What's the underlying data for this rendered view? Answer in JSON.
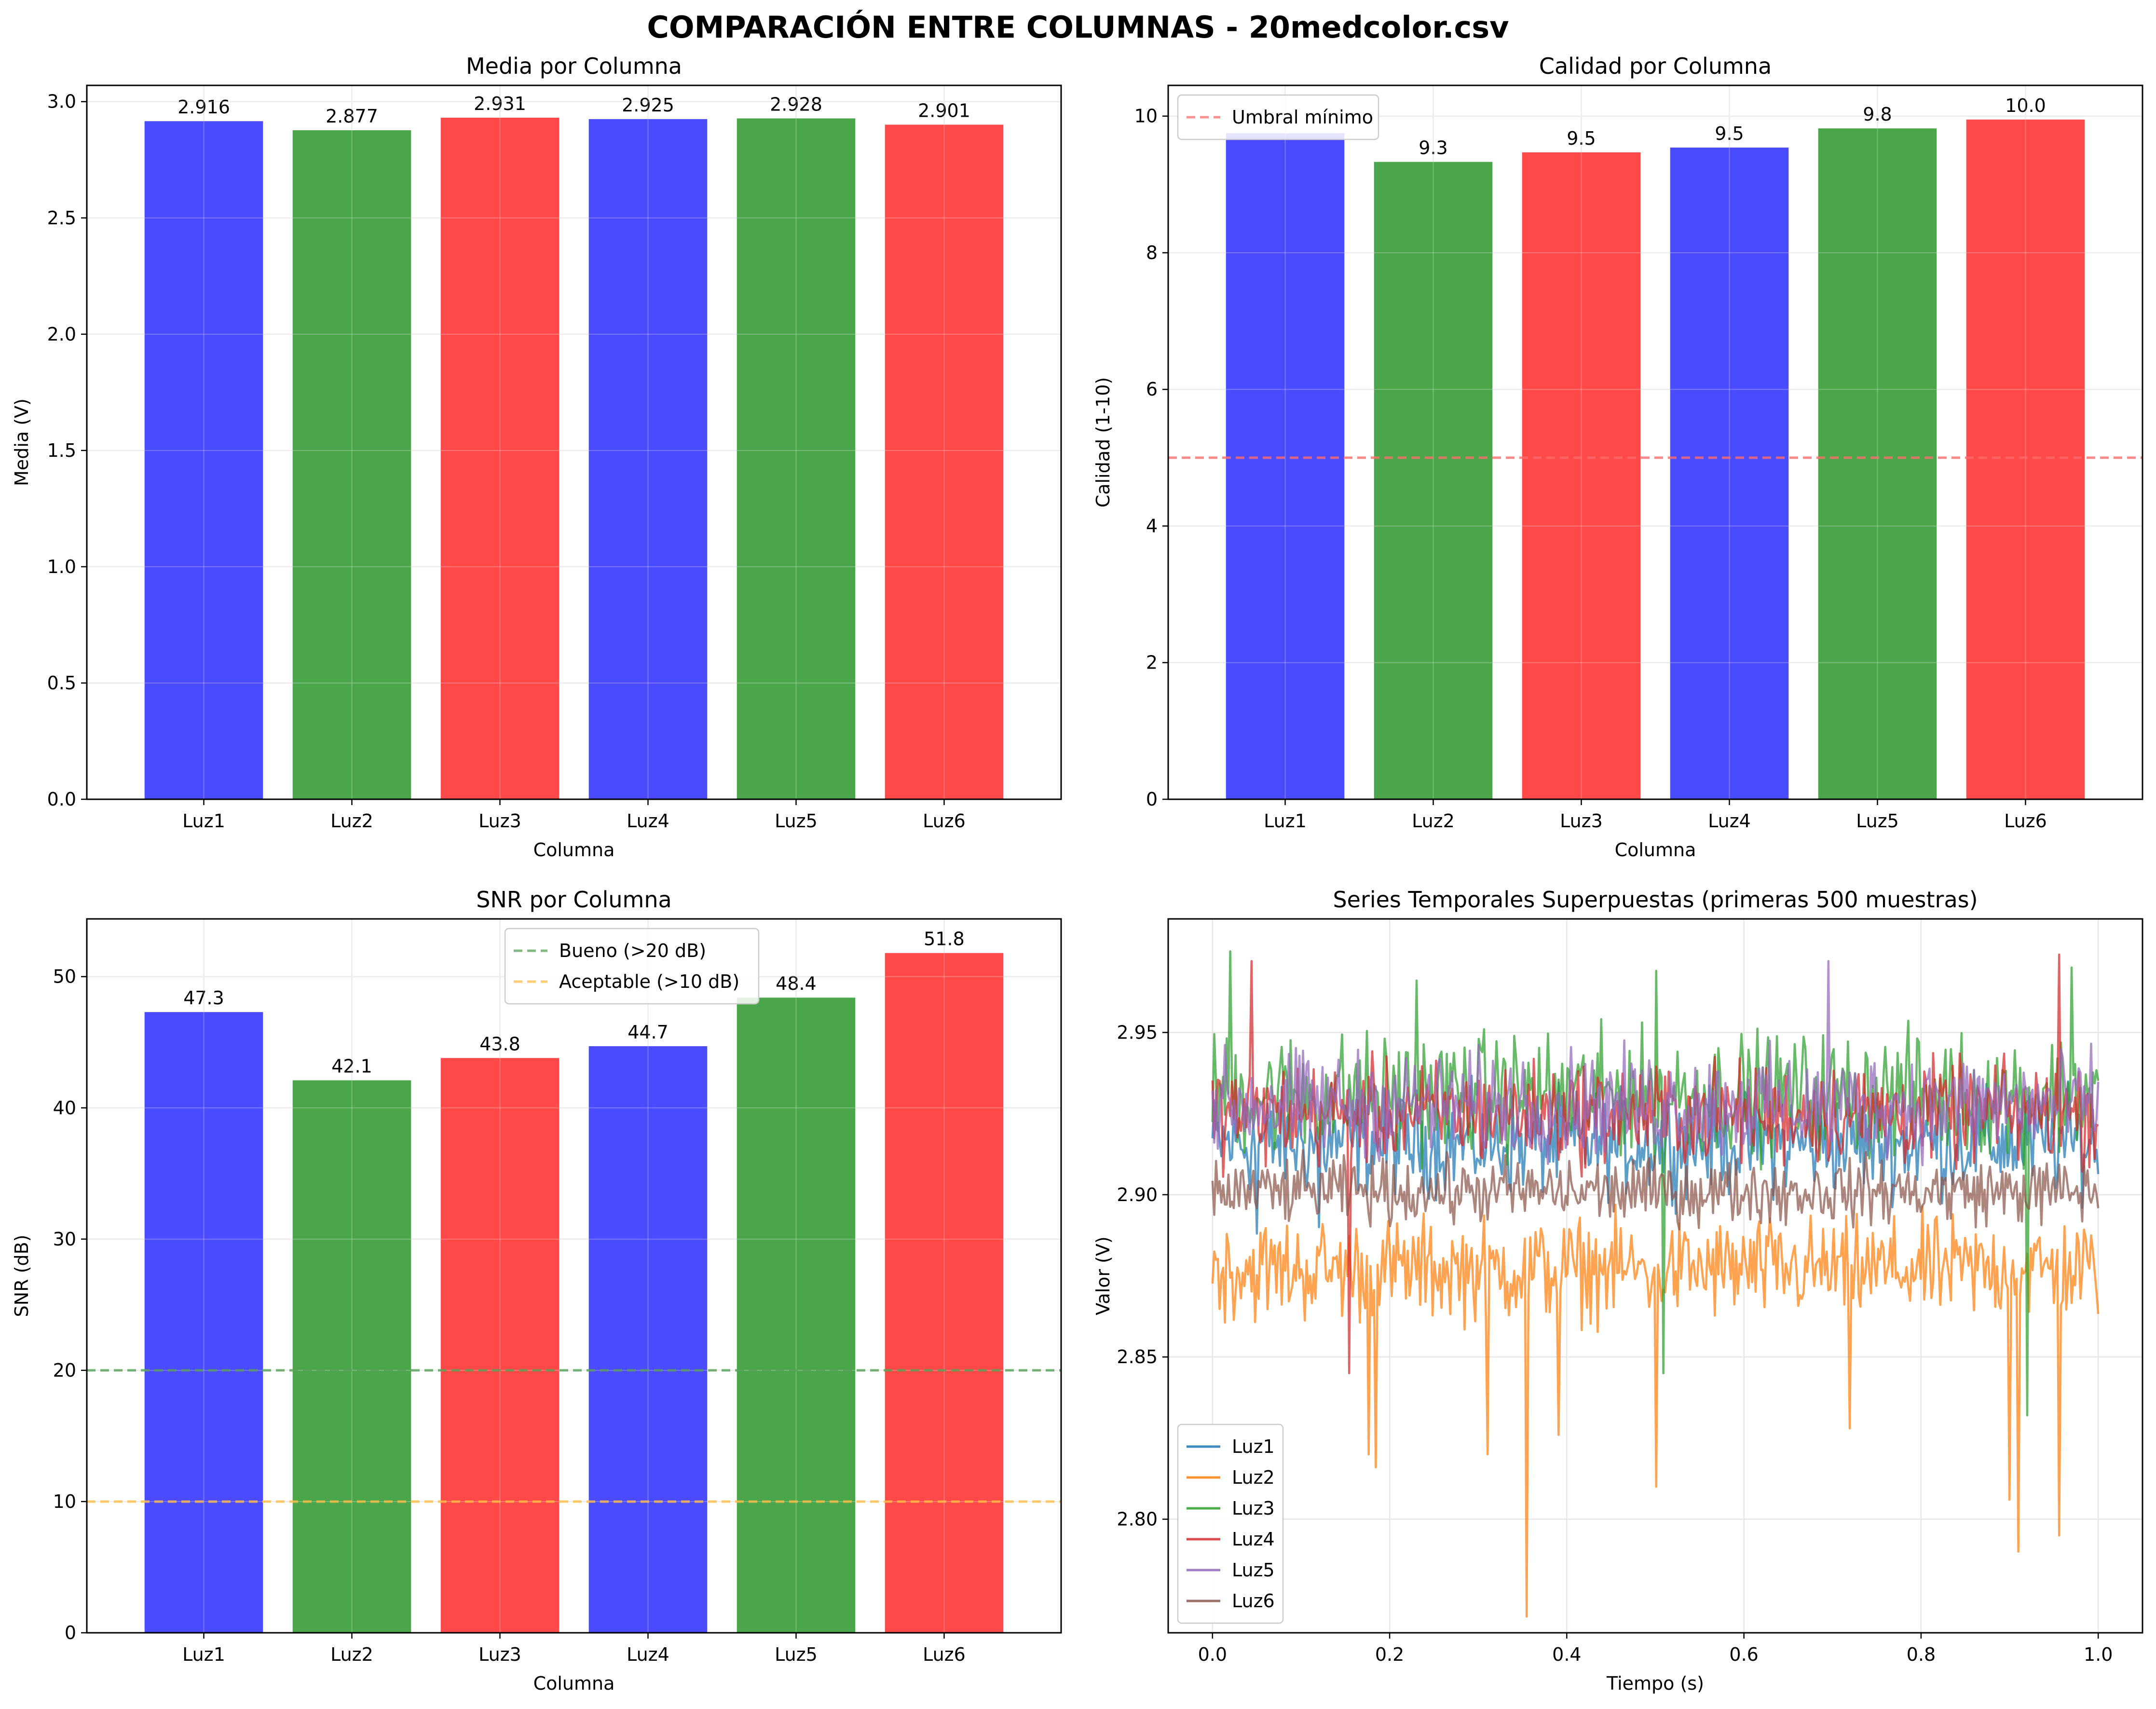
{
  "figure_title": "COMPARACIÓN ENTRE COLUMNAS - 20medcolor.csv",
  "colors": {
    "blue": "#4a4aff",
    "green": "#4ba64b",
    "red": "#ff4848",
    "grid": "#e6e6e6",
    "threshold_red": "#ff6b6b",
    "threshold_green": "#55a055",
    "threshold_orange": "#ffbb44",
    "series": [
      "#1f77b4",
      "#ff7f0e",
      "#2ca02c",
      "#d62728",
      "#9467bd",
      "#8c564b"
    ]
  },
  "chart_data": [
    {
      "type": "bar",
      "title": "Media por Columna",
      "xlabel": "Columna",
      "ylabel": "Media (V)",
      "categories": [
        "Luz1",
        "Luz2",
        "Luz3",
        "Luz4",
        "Luz5",
        "Luz6"
      ],
      "values": [
        2.916,
        2.877,
        2.931,
        2.925,
        2.928,
        2.901
      ],
      "value_labels": [
        "2.916",
        "2.877",
        "2.931",
        "2.925",
        "2.928",
        "2.901"
      ],
      "bar_colors": [
        "blue",
        "green",
        "red",
        "blue",
        "green",
        "red"
      ],
      "ylim": [
        0,
        3.07
      ],
      "yticks": [
        0.0,
        0.5,
        1.0,
        1.5,
        2.0,
        2.5,
        3.0
      ],
      "ytick_labels": [
        "0.0",
        "0.5",
        "1.0",
        "1.5",
        "2.0",
        "2.5",
        "3.0"
      ],
      "grid": true
    },
    {
      "type": "bar",
      "title": "Calidad por Columna",
      "xlabel": "Columna",
      "ylabel": "Calidad (1-10)",
      "categories": [
        "Luz1",
        "Luz2",
        "Luz3",
        "Luz4",
        "Luz5",
        "Luz6"
      ],
      "values": [
        9.75,
        9.33,
        9.47,
        9.54,
        9.82,
        9.95
      ],
      "value_labels": [
        "",
        "9.3",
        "9.5",
        "9.5",
        "9.8",
        "10.0"
      ],
      "bar_colors": [
        "blue",
        "green",
        "red",
        "blue",
        "green",
        "red"
      ],
      "ylim": [
        0,
        10.45
      ],
      "yticks": [
        0,
        2,
        4,
        6,
        8,
        10
      ],
      "ytick_labels": [
        "0",
        "2",
        "4",
        "6",
        "8",
        "10"
      ],
      "hlines": [
        {
          "y": 5,
          "label": "Umbral mínimo",
          "color": "threshold_red"
        }
      ],
      "legend": "top-left",
      "grid": true
    },
    {
      "type": "bar",
      "title": "SNR por Columna",
      "xlabel": "Columna",
      "ylabel": "SNR (dB)",
      "categories": [
        "Luz1",
        "Luz2",
        "Luz3",
        "Luz4",
        "Luz5",
        "Luz6"
      ],
      "values": [
        47.3,
        42.1,
        43.8,
        44.7,
        48.4,
        51.8
      ],
      "value_labels": [
        "47.3",
        "42.1",
        "43.8",
        "44.7",
        "48.4",
        "51.8"
      ],
      "bar_colors": [
        "blue",
        "green",
        "red",
        "blue",
        "green",
        "red"
      ],
      "ylim": [
        0,
        54.4
      ],
      "yticks": [
        0,
        10,
        20,
        30,
        40,
        50
      ],
      "ytick_labels": [
        "0",
        "10",
        "20",
        "30",
        "40",
        "50"
      ],
      "hlines": [
        {
          "y": 20,
          "label": "Bueno (>20 dB)",
          "color": "threshold_green"
        },
        {
          "y": 10,
          "label": "Aceptable (>10 dB)",
          "color": "threshold_orange"
        }
      ],
      "legend": "top-center",
      "grid": true
    },
    {
      "type": "line",
      "title": "Series Temporales Superpuestas (primeras 500 muestras)",
      "xlabel": "Tiempo (s)",
      "ylabel": "Valor (V)",
      "xlim": [
        -0.05,
        1.05
      ],
      "ylim": [
        2.765,
        2.985
      ],
      "xticks": [
        0.0,
        0.2,
        0.4,
        0.6,
        0.8,
        1.0
      ],
      "xtick_labels": [
        "0.0",
        "0.2",
        "0.4",
        "0.6",
        "0.8",
        "1.0"
      ],
      "yticks": [
        2.8,
        2.85,
        2.9,
        2.95
      ],
      "ytick_labels": [
        "2.80",
        "2.85",
        "2.90",
        "2.95"
      ],
      "n_points": 500,
      "series": [
        {
          "name": "Luz1",
          "mean": 2.916,
          "spread": 0.011,
          "dips": [
            [
              0.05,
              2.888
            ],
            [
              0.12,
              2.89
            ]
          ]
        },
        {
          "name": "Luz2",
          "mean": 2.877,
          "spread": 0.011,
          "dips": [
            [
              0.176,
              2.82
            ],
            [
              0.185,
              2.816
            ],
            [
              0.31,
              2.82
            ],
            [
              0.355,
              2.77
            ],
            [
              0.39,
              2.826
            ],
            [
              0.5,
              2.81
            ],
            [
              0.72,
              2.828
            ],
            [
              0.9,
              2.806
            ],
            [
              0.91,
              2.79
            ],
            [
              0.955,
              2.795
            ]
          ]
        },
        {
          "name": "Luz3",
          "mean": 2.931,
          "spread": 0.013,
          "peaks": [
            [
              0.02,
              2.975
            ],
            [
              0.23,
              2.966
            ],
            [
              0.5,
              2.969
            ],
            [
              0.97,
              2.97
            ]
          ],
          "dips": [
            [
              0.51,
              2.845
            ],
            [
              0.92,
              2.832
            ]
          ]
        },
        {
          "name": "Luz4",
          "mean": 2.925,
          "spread": 0.011,
          "peaks": [
            [
              0.045,
              2.972
            ],
            [
              0.955,
              2.974
            ]
          ],
          "dips": [
            [
              0.155,
              2.845
            ]
          ]
        },
        {
          "name": "Luz5",
          "mean": 2.928,
          "spread": 0.011,
          "peaks": [
            [
              0.695,
              2.972
            ]
          ]
        },
        {
          "name": "Luz6",
          "mean": 2.901,
          "spread": 0.007
        }
      ],
      "legend": "bottom-left",
      "grid": true
    }
  ]
}
